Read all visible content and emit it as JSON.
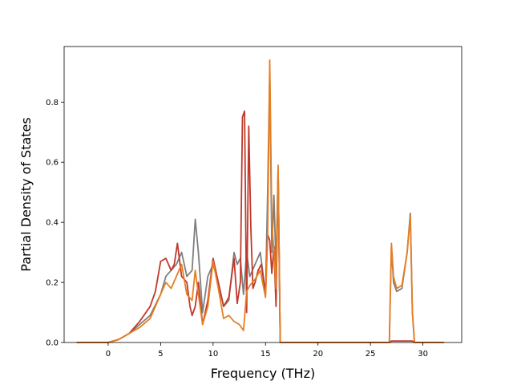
{
  "chart_data": {
    "type": "line",
    "title": "",
    "xlabel": "Frequency (THz)",
    "ylabel": "Partial Density of States",
    "xlim": [
      -4.2,
      33.7
    ],
    "ylim": [
      0,
      0.985
    ],
    "xticks": [
      0,
      5,
      10,
      15,
      20,
      25,
      30
    ],
    "yticks": [
      0.0,
      0.2,
      0.4,
      0.6,
      0.8
    ],
    "grid": false,
    "legend": "none",
    "series": [
      {
        "color": "#7f7f7f",
        "x": [
          -3,
          0,
          1,
          2,
          3,
          4,
          5,
          5.5,
          6,
          6.5,
          7,
          7.5,
          8,
          8.3,
          8.6,
          9,
          9.5,
          10,
          10.5,
          11,
          11.5,
          12,
          12.3,
          12.6,
          12.9,
          13.2,
          13.5,
          14,
          14.5,
          15,
          15.2,
          15.4,
          15.6,
          15.8,
          16,
          16.2,
          16.4,
          16.7,
          17,
          20,
          25,
          26.8,
          27.0,
          27.2,
          27.5,
          28,
          28.5,
          28.8,
          29.0,
          29.2,
          32
        ],
        "y": [
          0,
          0,
          0.01,
          0.03,
          0.06,
          0.09,
          0.16,
          0.22,
          0.24,
          0.26,
          0.3,
          0.22,
          0.24,
          0.41,
          0.3,
          0.1,
          0.22,
          0.26,
          0.2,
          0.12,
          0.14,
          0.3,
          0.26,
          0.28,
          0.16,
          0.3,
          0.22,
          0.26,
          0.3,
          0.16,
          0.5,
          0.9,
          0.3,
          0.49,
          0.25,
          0.58,
          0.0,
          0,
          0,
          0,
          0,
          0.0,
          0.32,
          0.2,
          0.17,
          0.18,
          0.3,
          0.43,
          0.1,
          0.0,
          0
        ]
      },
      {
        "color": "#c0392b",
        "x": [
          -3,
          0,
          1,
          2,
          3,
          4,
          4.5,
          5,
          5.5,
          6,
          6.3,
          6.6,
          7,
          7.5,
          7.8,
          8,
          8.3,
          8.6,
          9,
          9.5,
          10,
          10.5,
          11,
          11.5,
          12,
          12.3,
          12.6,
          12.8,
          13.0,
          13.2,
          13.4,
          13.6,
          13.8,
          14,
          14.3,
          14.6,
          15,
          15.2,
          15.4,
          15.6,
          15.8,
          16,
          16.2,
          16.4,
          16.7,
          17,
          20,
          25,
          26.8,
          27.0,
          29.0,
          29.2,
          32
        ],
        "y": [
          0,
          0,
          0.01,
          0.03,
          0.07,
          0.12,
          0.17,
          0.27,
          0.28,
          0.24,
          0.26,
          0.33,
          0.22,
          0.2,
          0.12,
          0.09,
          0.12,
          0.2,
          0.06,
          0.14,
          0.28,
          0.2,
          0.12,
          0.15,
          0.28,
          0.13,
          0.2,
          0.75,
          0.77,
          0.1,
          0.72,
          0.38,
          0.18,
          0.2,
          0.24,
          0.26,
          0.16,
          0.36,
          0.34,
          0.23,
          0.32,
          0.12,
          0.57,
          0.0,
          0,
          0,
          0,
          0,
          0.0,
          0.005,
          0.005,
          0.0,
          0
        ]
      },
      {
        "color": "#e67e22",
        "x": [
          -3,
          0,
          1,
          2,
          3,
          4,
          5,
          5.5,
          6,
          6.5,
          7,
          7.5,
          8,
          8.3,
          8.6,
          9,
          9.5,
          10,
          10.5,
          11,
          11.5,
          12,
          12.5,
          12.9,
          13.2,
          13.5,
          14,
          14.5,
          15,
          15.2,
          15.4,
          15.6,
          15.8,
          16,
          16.2,
          16.4,
          16.7,
          17,
          20,
          25,
          26.8,
          27.0,
          27.2,
          27.5,
          28,
          28.5,
          28.8,
          29.0,
          29.2,
          32
        ],
        "y": [
          0,
          0,
          0.01,
          0.03,
          0.05,
          0.08,
          0.16,
          0.2,
          0.18,
          0.22,
          0.26,
          0.16,
          0.14,
          0.24,
          0.16,
          0.06,
          0.12,
          0.27,
          0.18,
          0.08,
          0.09,
          0.07,
          0.06,
          0.04,
          0.17,
          0.19,
          0.21,
          0.24,
          0.15,
          0.35,
          0.94,
          0.4,
          0.3,
          0.18,
          0.59,
          0.0,
          0,
          0,
          0,
          0,
          0.0,
          0.33,
          0.22,
          0.18,
          0.19,
          0.3,
          0.42,
          0.1,
          0.0,
          0
        ]
      }
    ]
  }
}
